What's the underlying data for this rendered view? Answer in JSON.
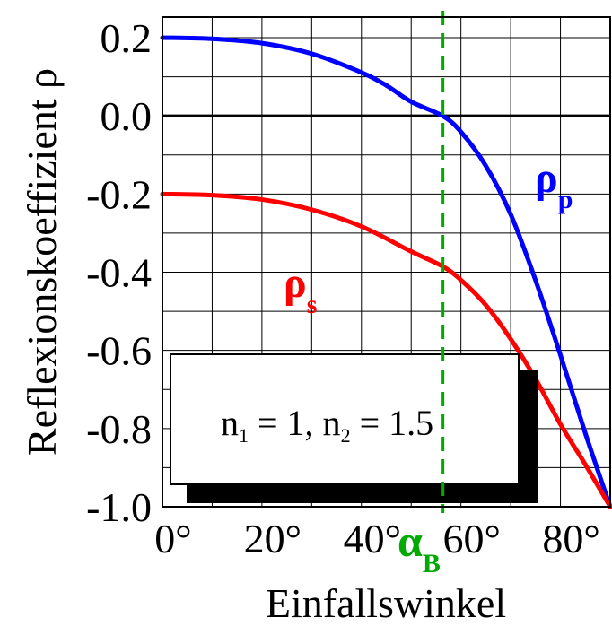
{
  "chart_data": {
    "type": "line",
    "xlabel": "Einfallswinkel",
    "ylabel": "Reflexionskoeffizient ρ",
    "xlim": [
      0,
      90
    ],
    "ylim": [
      -1.0,
      0.2
    ],
    "grid": true,
    "x_ticks": [
      {
        "value": 0,
        "label": "0°"
      },
      {
        "value": 20,
        "label": "20°"
      },
      {
        "value": 40,
        "label": "40°"
      },
      {
        "value": 60,
        "label": "60°"
      },
      {
        "value": 80,
        "label": "80°"
      }
    ],
    "y_ticks": [
      {
        "value": 0.2,
        "label": "0.2"
      },
      {
        "value": 0.0,
        "label": "0.0"
      },
      {
        "value": -0.2,
        "label": "-0.2"
      },
      {
        "value": -0.4,
        "label": "-0.4"
      },
      {
        "value": -0.6,
        "label": "-0.6"
      },
      {
        "value": -0.8,
        "label": "-0.8"
      },
      {
        "value": -1.0,
        "label": "-1.0"
      }
    ],
    "series": [
      {
        "name": "ρp",
        "color": "#0000ff",
        "x": [
          0,
          10,
          20,
          30,
          40,
          45,
          50,
          56.3,
          60,
          65,
          70,
          75,
          80,
          85,
          90
        ],
        "y": [
          0.2,
          0.197,
          0.186,
          0.159,
          0.111,
          0.078,
          0.036,
          0.0,
          -0.041,
          -0.128,
          -0.252,
          -0.421,
          -0.612,
          -0.812,
          -1.0
        ]
      },
      {
        "name": "ρs",
        "color": "#ff0000",
        "x": [
          0,
          10,
          20,
          30,
          40,
          50,
          56.3,
          60,
          65,
          70,
          75,
          80,
          85,
          90
        ],
        "y": [
          -0.2,
          -0.203,
          -0.214,
          -0.24,
          -0.283,
          -0.347,
          -0.385,
          -0.42,
          -0.484,
          -0.571,
          -0.673,
          -0.789,
          -0.892,
          -1.0
        ]
      }
    ],
    "brewster_angle": 56.3,
    "brewster_color": "#00aa00"
  },
  "labels": {
    "rho_p_main": "ρ",
    "rho_p_sub": "p",
    "rho_s_main": "ρ",
    "rho_s_sub": "s",
    "alpha_main": "α",
    "alpha_sub": "B",
    "box_n1": "n",
    "box_n1_sub": "1",
    "box_mid": " = 1, n",
    "box_n2_sub": "2",
    "box_end": " = 1.5"
  }
}
